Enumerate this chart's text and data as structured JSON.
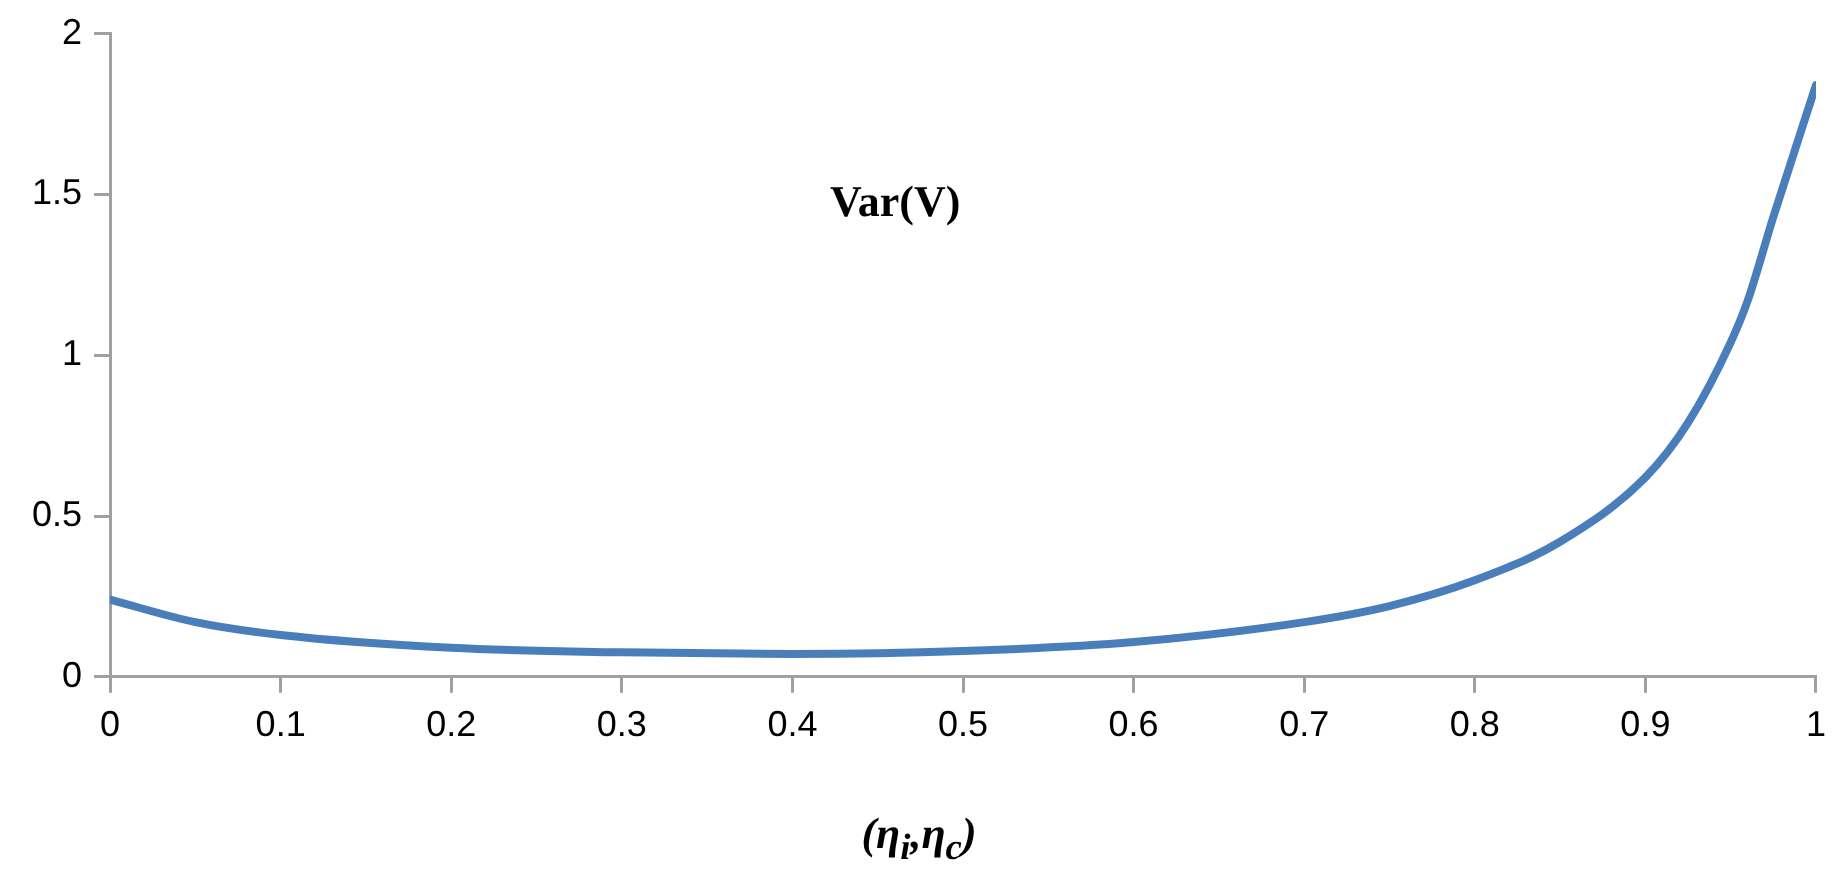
{
  "chart_data": {
    "type": "line",
    "xlabel": "(η$_{i}$,η$_{c}$)",
    "annotations": [
      "Var(V)"
    ],
    "x": [
      0,
      0.05,
      0.1,
      0.2,
      0.3,
      0.4,
      0.5,
      0.6,
      0.7,
      0.75,
      0.8,
      0.85,
      0.9,
      0.925,
      0.95,
      0.96,
      0.975,
      1
    ],
    "series": [
      {
        "color": "#4a7ebb",
        "values": [
          0.24,
          0.17,
          0.13,
          0.09,
          0.076,
          0.071,
          0.08,
          0.108,
          0.17,
          0.22,
          0.3,
          0.42,
          0.62,
          0.79,
          1.04,
          1.17,
          1.43,
          1.84
        ]
      }
    ],
    "xlim": [
      0,
      1
    ],
    "xticks": [
      0,
      0.1,
      0.2,
      0.3,
      0.4,
      0.5,
      0.6,
      0.7,
      0.8,
      0.9,
      1
    ],
    "ylim": [
      0,
      2
    ],
    "yticks": [
      0,
      0.5,
      1,
      1.5,
      2
    ],
    "grid": false,
    "legend": false,
    "marker": "none",
    "line_style": "solid"
  }
}
